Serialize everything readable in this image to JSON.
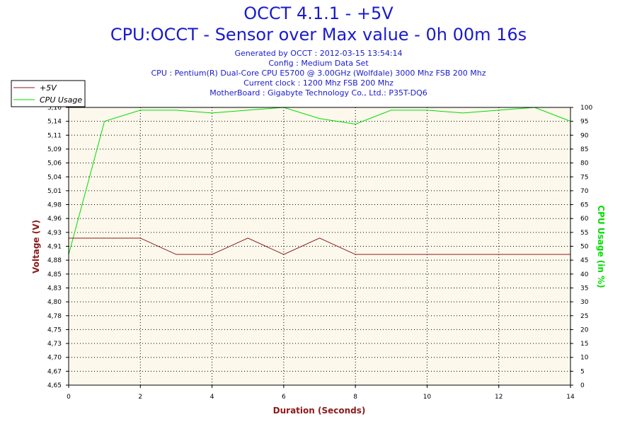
{
  "header": {
    "title": "OCCT 4.1.1 - +5V",
    "subtitle": "CPU:OCCT - Sensor over Max value - 0h 00m 16s",
    "info_lines": [
      "Generated by OCCT : 2012-03-15 13:54:14",
      "Config : Medium Data Set",
      "CPU : Pentium(R) Dual-Core CPU E5700 @ 3.00GHz (Wolfdale) 3000 Mhz FSB 200 Mhz",
      "Current clock : 1200 Mhz FSB 200 Mhz",
      "MotherBoard : Gigabyte Technology Co., Ltd.: P35T-DQ6"
    ]
  },
  "colors": {
    "title": "#1a1acd",
    "axis_label": "#8b1a1a",
    "voltage_line": "#8b1a1a",
    "cpu_line": "#00dd00",
    "cpu_axis_label": "#00dd00",
    "plot_background": "#fcf8ec",
    "grid": "#000000"
  },
  "chart_data": {
    "type": "line",
    "title": "OCCT 4.1.1 - +5V",
    "subtitle": "CPU:OCCT - Sensor over Max value - 0h 00m 16s",
    "xlabel": "Duration (Seconds)",
    "ylabel": "Voltage (V)",
    "y2label": "CPU Usage (in %)",
    "xlim": [
      0,
      14
    ],
    "ylim": [
      4.65,
      5.16
    ],
    "y2lim": [
      0,
      100
    ],
    "x_ticks": [
      "0",
      "2",
      "4",
      "6",
      "8",
      "10",
      "12",
      "14"
    ],
    "x_tick_values": [
      0,
      2,
      4,
      6,
      8,
      10,
      12,
      14
    ],
    "y_ticks": [
      "4,65",
      "4,67",
      "4,70",
      "4,73",
      "4,75",
      "4,78",
      "4,80",
      "4,83",
      "4,85",
      "4,88",
      "4,91",
      "4,93",
      "4,96",
      "4,98",
      "5,01",
      "5,04",
      "5,06",
      "5,09",
      "5,11",
      "5,14",
      "5,16"
    ],
    "y2_ticks": [
      "0",
      "5",
      "10",
      "15",
      "20",
      "25",
      "30",
      "35",
      "40",
      "45",
      "50",
      "55",
      "60",
      "65",
      "70",
      "75",
      "80",
      "85",
      "90",
      "95",
      "100"
    ],
    "grid": true,
    "legend_position": "top-left",
    "series": [
      {
        "name": "+5V",
        "axis": "left",
        "x": [
          0,
          1,
          2,
          3,
          4,
          5,
          6,
          7,
          8,
          9,
          10,
          11,
          12,
          13,
          14
        ],
        "values": [
          4.92,
          4.92,
          4.92,
          4.89,
          4.89,
          4.92,
          4.89,
          4.92,
          4.89,
          4.89,
          4.89,
          4.89,
          4.89,
          4.89,
          4.89
        ]
      },
      {
        "name": "CPU Usage",
        "axis": "right",
        "x": [
          0,
          1,
          2,
          3,
          4,
          5,
          6,
          7,
          8,
          9,
          10,
          11,
          12,
          13,
          14
        ],
        "values": [
          47,
          95,
          99,
          99,
          98,
          99,
          100,
          96,
          94,
          99,
          99,
          98,
          99,
          100,
          95
        ]
      }
    ]
  }
}
